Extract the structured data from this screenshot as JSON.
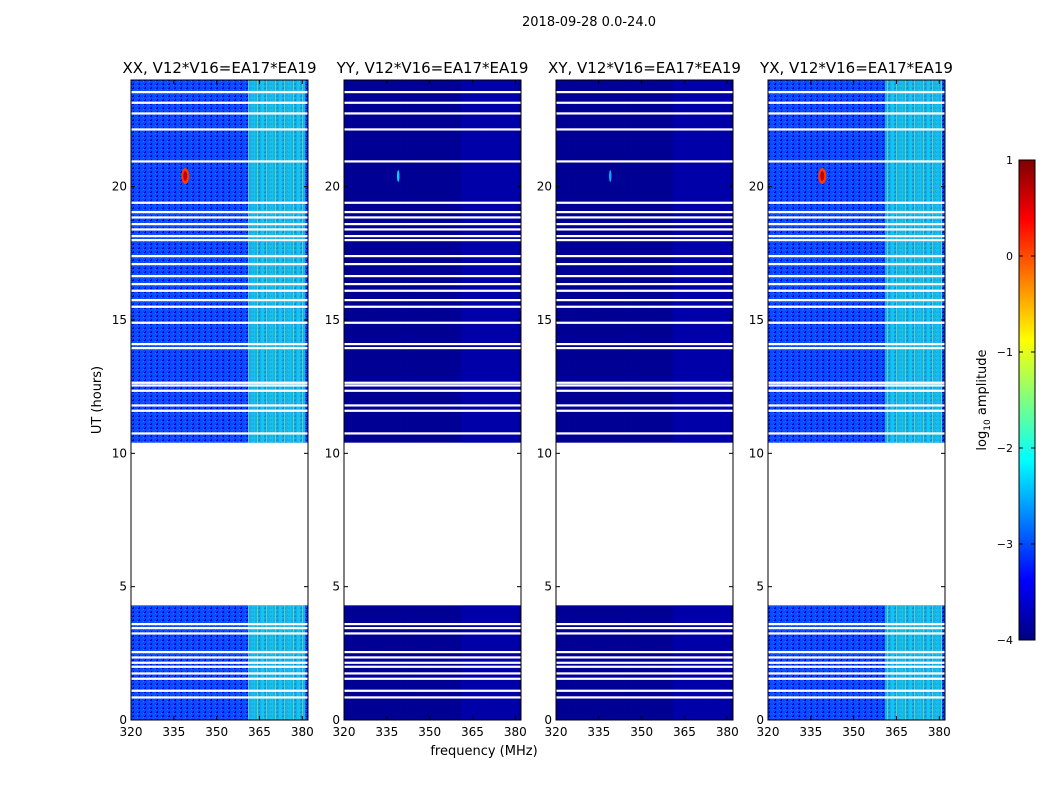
{
  "chart_data": {
    "type": "heatmap",
    "suptitle": "2018-09-28 0.0-24.0",
    "xlabel": "frequency (MHz)",
    "ylabel": "UT (hours)",
    "xlim": [
      320,
      382
    ],
    "ylim": [
      0,
      24
    ],
    "xticks": [
      320,
      335,
      350,
      365,
      380
    ],
    "yticks": [
      0,
      5,
      10,
      15,
      20
    ],
    "colorbar": {
      "label_prefix": "log",
      "label_sub": "10",
      "label_suffix": " amplitude",
      "vmin": -4,
      "vmax": 1,
      "ticks": [
        1,
        0,
        -1,
        -2,
        -3,
        -4
      ],
      "colormap": "jet",
      "colors": [
        "#00007f",
        "#0000ff",
        "#007fff",
        "#00ffff",
        "#7fff7f",
        "#ffff00",
        "#ff7f00",
        "#ff0000",
        "#7f0000"
      ]
    },
    "panels": [
      {
        "title": "XX, V12*V16=EA17*EA19",
        "background_level": -3.0,
        "rfi_band_level": -1.9,
        "burst_level": 0.1
      },
      {
        "title": "YY, V12*V16=EA17*EA19",
        "background_level": -3.9,
        "rfi_band_level": -3.6,
        "burst_level": -2.3
      },
      {
        "title": "XY, V12*V16=EA17*EA19",
        "background_level": -3.9,
        "rfi_band_level": -3.6,
        "burst_level": -2.5
      },
      {
        "title": "YX, V12*V16=EA17*EA19",
        "background_level": -3.0,
        "rfi_band_level": -1.9,
        "burst_level": 0.1
      }
    ],
    "data_gap_hours": [
      4.3,
      10.4
    ],
    "rfi_band_mhz": [
      361,
      381
    ],
    "burst": {
      "freq_mhz": 339,
      "ut_hours": 20.4
    },
    "flagged_rows_ut": [
      0.85,
      1.1,
      1.55,
      1.75,
      2.0,
      2.15,
      2.35,
      2.55,
      3.25,
      3.45,
      3.6,
      10.75,
      11.6,
      11.8,
      12.35,
      12.55,
      12.65,
      13.95,
      14.1,
      14.9,
      15.5,
      15.75,
      16.1,
      16.35,
      16.65,
      17.1,
      17.4,
      18.0,
      18.15,
      18.4,
      18.6,
      18.85,
      19.05,
      19.4,
      20.95,
      22.15,
      22.75,
      23.15,
      23.55
    ]
  }
}
